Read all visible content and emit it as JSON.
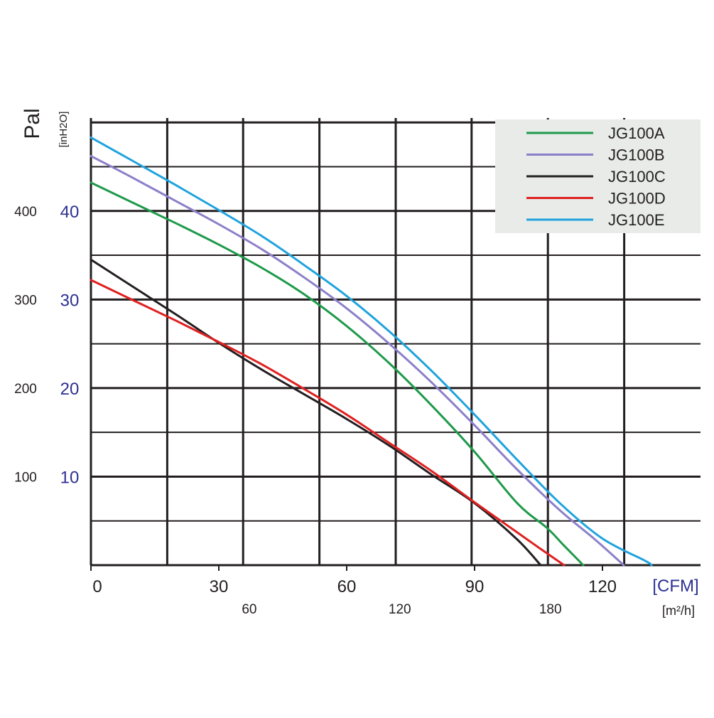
{
  "chart_data": {
    "type": "line",
    "title": "",
    "y_primary_label": "Pal",
    "y_secondary_label": "[inH2O]",
    "x_primary_unit": "[CFM]",
    "x_secondary_unit": "[m²/h]",
    "y_pa_ticks": [
      {
        "value": 400,
        "label": "400"
      },
      {
        "value": 300,
        "label": "300"
      },
      {
        "value": 200,
        "label": "200"
      },
      {
        "value": 100,
        "label": "100"
      }
    ],
    "y_inh2o_ticks": [
      {
        "value": 400,
        "label": "40"
      },
      {
        "value": 300,
        "label": "30"
      },
      {
        "value": 200,
        "label": "20"
      },
      {
        "value": 100,
        "label": "10"
      }
    ],
    "x_cfm_ticks": [
      {
        "value": 0,
        "label": "0"
      },
      {
        "value": 30,
        "label": "30"
      },
      {
        "value": 60,
        "label": "60"
      },
      {
        "value": 90,
        "label": "90"
      },
      {
        "value": 120,
        "label": "120"
      }
    ],
    "x_m3h_ticks": [
      {
        "value": 60,
        "label": "60"
      },
      {
        "value": 120,
        "label": "120"
      },
      {
        "value": 180,
        "label": "180"
      }
    ],
    "x_gridlines": [
      0,
      17.9,
      35.7,
      53.6,
      71.5,
      89.3,
      107.2,
      125.1
    ],
    "y_gridlines": [
      0,
      50,
      100,
      150,
      200,
      250,
      300,
      350,
      400,
      450,
      500
    ],
    "xlim": [
      0,
      143
    ],
    "ylim": [
      0,
      505
    ],
    "grid": true,
    "legend_position": "top-right",
    "series": [
      {
        "name": "JG100A",
        "color": "#1e9a4a",
        "x": [
          0,
          10,
          20,
          30,
          40,
          50,
          60,
          70,
          80,
          90,
          100,
          107,
          111,
          115.5
        ],
        "y": [
          432,
          409,
          386,
          362,
          336,
          306,
          270,
          228,
          180,
          128,
          70,
          42,
          22,
          0
        ]
      },
      {
        "name": "JG100B",
        "color": "#8c7fc9",
        "x": [
          0,
          10,
          20,
          30,
          40,
          50,
          60,
          70,
          80,
          90,
          100,
          110,
          118,
          125
        ],
        "y": [
          462,
          437,
          411,
          385,
          357,
          325,
          290,
          250,
          206,
          158,
          108,
          62,
          30,
          0
        ]
      },
      {
        "name": "JG100C",
        "color": "#231f20",
        "x": [
          0,
          10,
          20,
          30,
          40,
          50,
          60,
          70,
          80,
          90,
          100,
          105.5
        ],
        "y": [
          345,
          314,
          283,
          251,
          221,
          193,
          165,
          135,
          102,
          70,
          29,
          0
        ]
      },
      {
        "name": "JG100D",
        "color": "#e02020",
        "x": [
          0,
          10,
          20,
          30,
          40,
          50,
          60,
          70,
          80,
          90,
          100,
          105,
          111
        ],
        "y": [
          322,
          299,
          276,
          252,
          227,
          199,
          170,
          138,
          106,
          71,
          37,
          20,
          0
        ]
      },
      {
        "name": "JG100E",
        "color": "#1fa3dd",
        "x": [
          0,
          10,
          20,
          30,
          40,
          50,
          60,
          70,
          80,
          90,
          100,
          110,
          120,
          130,
          131.5
        ],
        "y": [
          483,
          456,
          429,
          401,
          372,
          339,
          304,
          264,
          219,
          170,
          119,
          70,
          30,
          5,
          0
        ]
      }
    ]
  }
}
